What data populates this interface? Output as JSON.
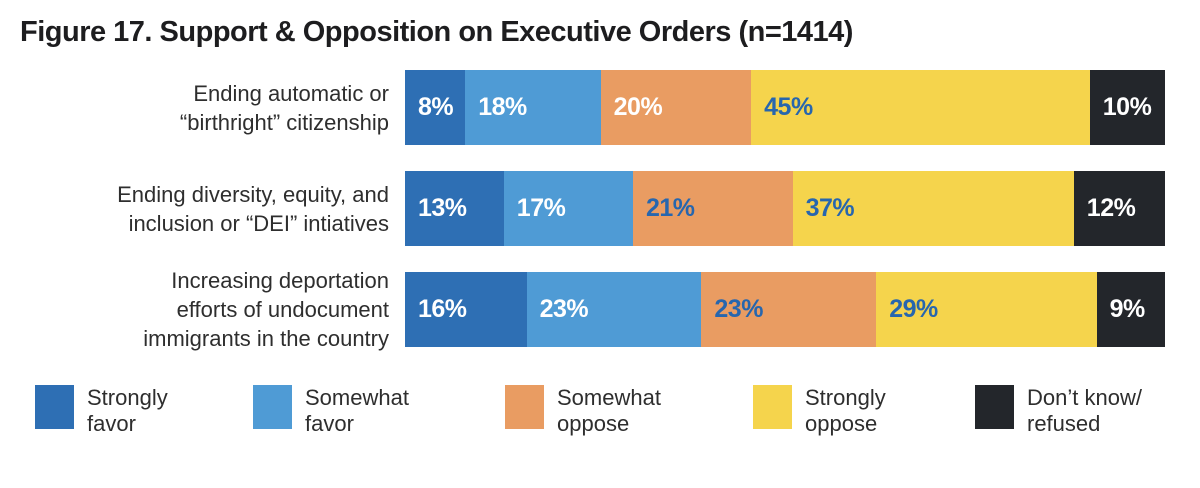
{
  "title": "Figure 17. Support & Opposition on Executive Orders (n=1414)",
  "colors": {
    "strongly_favor": "#2E6FB4",
    "somewhat_favor": "#4F9BD5",
    "somewhat_oppose": "#E99C62",
    "strongly_oppose": "#F5D44C",
    "dont_know_refused": "#23262B",
    "value_label_blue": "#2766AE",
    "value_label_white": "#FFFFFF"
  },
  "chart_data": {
    "type": "bar",
    "orientation": "horizontal-stacked",
    "title": "Figure 17. Support & Opposition on Executive Orders (n=1414)",
    "categories": [
      "Ending automatic or “birthright” citizenship",
      "Ending diversity, equity, and inclusion or “DEI” intiatives",
      "Increasing deportation efforts of undocument immigrants in the country"
    ],
    "series": [
      {
        "name": "Strongly favor",
        "values": [
          8,
          13,
          16
        ]
      },
      {
        "name": "Somewhat favor",
        "values": [
          18,
          17,
          23
        ]
      },
      {
        "name": "Somewhat oppose",
        "values": [
          20,
          21,
          23
        ]
      },
      {
        "name": "Strongly oppose",
        "values": [
          45,
          37,
          29
        ]
      },
      {
        "name": "Don’t know/refused",
        "values": [
          10,
          12,
          9
        ]
      }
    ],
    "legend_position": "bottom",
    "grid": false,
    "rows": [
      {
        "label_lines": [
          "Ending automatic or",
          "“birthright” citizenship"
        ],
        "segments": [
          {
            "value": 8,
            "label": "8%",
            "fill": "#2E6FB4",
            "text_color": "#FFFFFF"
          },
          {
            "value": 18,
            "label": "18%",
            "fill": "#4F9BD5",
            "text_color": "#FFFFFF"
          },
          {
            "value": 20,
            "label": "20%",
            "fill": "#E99C62",
            "text_color": "#FFFFFF"
          },
          {
            "value": 45,
            "label": "45%",
            "fill": "#F5D44C",
            "text_color": "#2766AE"
          },
          {
            "value": 10,
            "label": "10%",
            "fill": "#23262B",
            "text_color": "#FFFFFF"
          }
        ]
      },
      {
        "label_lines": [
          "Ending diversity, equity, and",
          "inclusion or “DEI” intiatives"
        ],
        "segments": [
          {
            "value": 13,
            "label": "13%",
            "fill": "#2E6FB4",
            "text_color": "#FFFFFF"
          },
          {
            "value": 17,
            "label": "17%",
            "fill": "#4F9BD5",
            "text_color": "#FFFFFF"
          },
          {
            "value": 21,
            "label": "21%",
            "fill": "#E99C62",
            "text_color": "#2766AE"
          },
          {
            "value": 37,
            "label": "37%",
            "fill": "#F5D44C",
            "text_color": "#2766AE"
          },
          {
            "value": 12,
            "label": "12%",
            "fill": "#23262B",
            "text_color": "#FFFFFF"
          }
        ]
      },
      {
        "label_lines": [
          "Increasing deportation",
          "efforts of undocument",
          "immigrants in the country"
        ],
        "segments": [
          {
            "value": 16,
            "label": "16%",
            "fill": "#2E6FB4",
            "text_color": "#FFFFFF"
          },
          {
            "value": 23,
            "label": "23%",
            "fill": "#4F9BD5",
            "text_color": "#FFFFFF"
          },
          {
            "value": 23,
            "label": "23%",
            "fill": "#E99C62",
            "text_color": "#2766AE"
          },
          {
            "value": 29,
            "label": "29%",
            "fill": "#F5D44C",
            "text_color": "#2766AE"
          },
          {
            "value": 9,
            "label": "9%",
            "fill": "#23262B",
            "text_color": "#FFFFFF"
          }
        ]
      }
    ]
  },
  "legend": {
    "items": [
      {
        "label_lines": [
          "Strongly",
          "favor"
        ],
        "color": "#2E6FB4"
      },
      {
        "label_lines": [
          "Somewhat",
          "favor"
        ],
        "color": "#4F9BD5"
      },
      {
        "label_lines": [
          "Somewhat",
          "oppose"
        ],
        "color": "#E99C62"
      },
      {
        "label_lines": [
          "Strongly",
          "oppose"
        ],
        "color": "#F5D44C"
      },
      {
        "label_lines": [
          "Don’t know/",
          "refused"
        ],
        "color": "#23262B"
      }
    ]
  }
}
